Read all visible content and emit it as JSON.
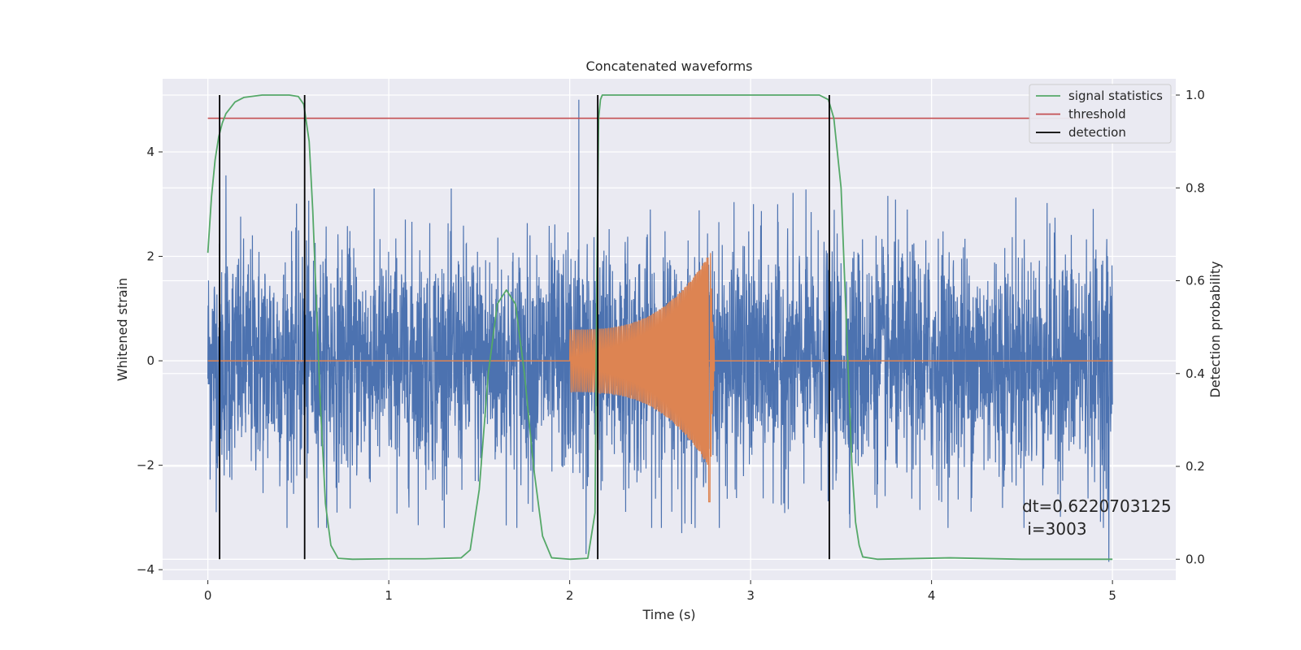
{
  "chart_data": {
    "type": "line",
    "title": "Concatenated waveforms",
    "xlabel": "Time (s)",
    "ylabel": "Whitened strain",
    "y2label": "Detection probability",
    "xlim": [
      -0.25,
      5.35
    ],
    "ylim": [
      -4.2,
      5.4
    ],
    "y2lim": [
      -0.045,
      1.035
    ],
    "x_ticks": [
      0,
      1,
      2,
      3,
      4,
      5
    ],
    "y_ticks": [
      -4,
      -2,
      0,
      2,
      4
    ],
    "y2_ticks": [
      0.0,
      0.2,
      0.4,
      0.6,
      0.8,
      1.0
    ],
    "x_tick_labels": [
      "0",
      "1",
      "2",
      "3",
      "4",
      "5"
    ],
    "y_tick_labels": [
      "−4",
      "−2",
      "0",
      "2",
      "4"
    ],
    "y2_tick_labels": [
      "0.0",
      "0.2",
      "0.4",
      "0.6",
      "0.8",
      "1.0"
    ],
    "grid": true,
    "legend_position": "top-right",
    "colors": {
      "strain": "#4c72b0",
      "waveform": "#dd8452",
      "signal": "#55a868",
      "threshold": "#c44e52",
      "detection": "#000000",
      "axes_bg": "#eaeaf2"
    },
    "legend": [
      "signal statistics",
      "threshold",
      "detection"
    ],
    "series": [
      {
        "name": "signal statistics",
        "axis": "right",
        "x": [
          0.0,
          0.02,
          0.04,
          0.06,
          0.08,
          0.1,
          0.15,
          0.2,
          0.3,
          0.45,
          0.5,
          0.53,
          0.56,
          0.58,
          0.6,
          0.62,
          0.65,
          0.68,
          0.72,
          0.8,
          1.0,
          1.2,
          1.4,
          1.45,
          1.5,
          1.55,
          1.6,
          1.65,
          1.7,
          1.75,
          1.8,
          1.85,
          1.9,
          2.0,
          2.1,
          2.14,
          2.15,
          2.16,
          2.17,
          2.18,
          2.2,
          2.3,
          3.0,
          3.38,
          3.43,
          3.46,
          3.5,
          3.52,
          3.54,
          3.56,
          3.58,
          3.6,
          3.62,
          3.7,
          4.1,
          4.5,
          5.0
        ],
        "y": [
          0.66,
          0.78,
          0.86,
          0.91,
          0.94,
          0.96,
          0.985,
          0.995,
          1.0,
          1.0,
          0.997,
          0.98,
          0.9,
          0.75,
          0.55,
          0.35,
          0.12,
          0.03,
          0.002,
          0.0,
          0.001,
          0.001,
          0.003,
          0.02,
          0.15,
          0.4,
          0.55,
          0.58,
          0.55,
          0.4,
          0.2,
          0.05,
          0.003,
          0.0,
          0.002,
          0.1,
          0.6,
          0.95,
          0.99,
          1.0,
          1.0,
          1.0,
          1.0,
          1.0,
          0.99,
          0.95,
          0.8,
          0.6,
          0.4,
          0.2,
          0.08,
          0.03,
          0.005,
          0.0,
          0.003,
          0.0,
          0.0
        ]
      },
      {
        "name": "threshold",
        "axis": "right",
        "x": [
          0.0,
          5.0
        ],
        "y": [
          0.95,
          0.95
        ]
      },
      {
        "name": "detection",
        "axis": "right",
        "x": [
          0.065,
          0.535,
          2.155,
          3.435
        ],
        "y_range": [
          0.0,
          1.0
        ]
      }
    ],
    "strain": {
      "x_range": [
        0.0,
        5.0
      ],
      "typical_amplitude": 1.3,
      "peak_values": [
        {
          "x": 0.1,
          "y": 3.55
        },
        {
          "x": 2.05,
          "y": 5.0
        },
        {
          "x": 2.09,
          "y": -3.7
        },
        {
          "x": 2.62,
          "y": -3.3
        },
        {
          "x": 4.98,
          "y": -3.85
        }
      ]
    },
    "waveform": {
      "x_range": [
        2.0,
        2.8
      ],
      "amp_start": 0.6,
      "amp_peak": 2.1,
      "peak_x": 2.78,
      "min_value": -2.7
    },
    "annotation": "dt=0.6220703125\n i=3003"
  }
}
